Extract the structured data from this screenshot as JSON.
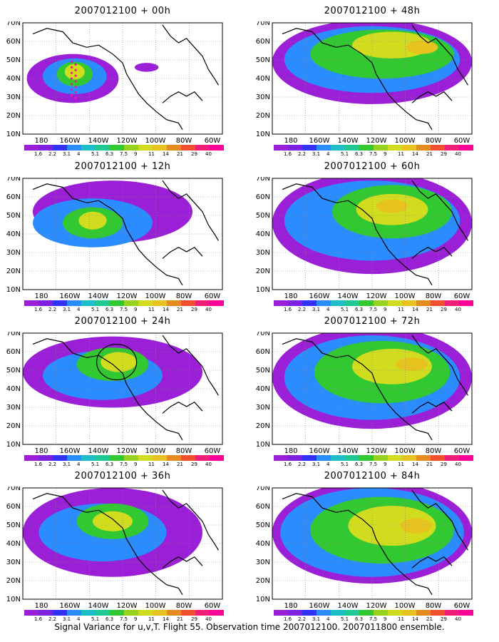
{
  "panels": [
    {
      "title": "2007012100 + 00h",
      "has_track": true,
      "has_ellipse": false
    },
    {
      "title": "2007012100 + 48h",
      "has_track": false,
      "has_ellipse": false
    },
    {
      "title": "2007012100 + 12h",
      "has_track": false,
      "has_ellipse": false
    },
    {
      "title": "2007012100 + 60h",
      "has_track": false,
      "has_ellipse": false
    },
    {
      "title": "2007012100 + 24h",
      "has_track": false,
      "has_ellipse": true
    },
    {
      "title": "2007012100 + 72h",
      "has_track": false,
      "has_ellipse": false
    },
    {
      "title": "2007012100 + 36h",
      "has_track": false,
      "has_ellipse": false
    },
    {
      "title": "2007012100 + 84h",
      "has_track": false,
      "has_ellipse": false
    }
  ],
  "lat_labels": [
    "70N",
    "60N",
    "50N",
    "40N",
    "30N",
    "20N",
    "10N"
  ],
  "lon_labels": [
    "180",
    "160W",
    "140W",
    "120W",
    "100W",
    "80W",
    "60W"
  ],
  "colorbar": {
    "labels": [
      "1.6",
      "2.2",
      "3.1",
      "4",
      "5.1",
      "6.3",
      "7.5",
      "9",
      "11",
      "14",
      "21",
      "29",
      "40"
    ],
    "colors": [
      "#9b1fd6",
      "#7d20e0",
      "#3232ff",
      "#2a8cff",
      "#1ebec8",
      "#20c896",
      "#32c832",
      "#96d21e",
      "#d2dc1e",
      "#e6c31e",
      "#e68c1e",
      "#f0502d",
      "#f01e78",
      "#ff0096"
    ]
  },
  "footer": "Signal Variance for u,v,T. Flight 55. Observation time 2007012100. 2007011800 ensemble."
}
